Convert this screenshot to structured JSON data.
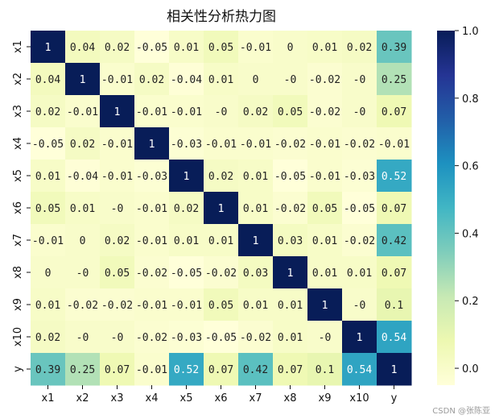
{
  "chart_data": {
    "type": "heatmap",
    "title": "相关性分析热力图",
    "row_labels": [
      "x1",
      "x2",
      "x3",
      "x4",
      "x5",
      "x6",
      "x7",
      "x8",
      "x9",
      "x10",
      "y"
    ],
    "col_labels": [
      "x1",
      "x2",
      "x3",
      "x4",
      "x5",
      "x6",
      "x7",
      "x8",
      "x9",
      "x10",
      "y"
    ],
    "values": [
      [
        1,
        0.04,
        0.02,
        -0.05,
        0.01,
        0.05,
        -0.01,
        0,
        0.01,
        0.02,
        0.39
      ],
      [
        0.04,
        1,
        -0.01,
        0.02,
        -0.04,
        0.01,
        0,
        0,
        -0.02,
        0,
        0.25
      ],
      [
        0.02,
        -0.01,
        1,
        -0.01,
        -0.01,
        0,
        0.02,
        0.05,
        -0.02,
        0,
        0.07
      ],
      [
        -0.05,
        0.02,
        -0.01,
        1,
        -0.03,
        -0.01,
        -0.01,
        -0.02,
        -0.01,
        -0.02,
        -0.01
      ],
      [
        0.01,
        -0.04,
        -0.01,
        -0.03,
        1,
        0.02,
        0.01,
        -0.05,
        -0.01,
        -0.03,
        0.52
      ],
      [
        0.05,
        0.01,
        0,
        -0.01,
        0.02,
        1,
        0.01,
        -0.02,
        0.05,
        -0.05,
        0.07
      ],
      [
        -0.01,
        0,
        0.02,
        -0.01,
        0.01,
        0.01,
        1,
        0.03,
        0.01,
        -0.02,
        0.42
      ],
      [
        0,
        0,
        0.05,
        -0.02,
        -0.05,
        -0.02,
        0.03,
        1,
        0.01,
        0.01,
        0.07
      ],
      [
        0.01,
        -0.02,
        -0.02,
        -0.01,
        -0.01,
        0.05,
        0.01,
        0.01,
        1,
        0,
        0.1
      ],
      [
        0.02,
        0,
        0,
        -0.02,
        -0.03,
        -0.05,
        -0.02,
        0.01,
        0,
        1,
        0.54
      ],
      [
        0.39,
        0.25,
        0.07,
        -0.01,
        0.52,
        0.07,
        0.42,
        0.07,
        0.1,
        0.54,
        1
      ]
    ],
    "display_labels": [
      [
        "1",
        "0.04",
        "0.02",
        "-0.05",
        "0.01",
        "0.05",
        "-0.01",
        "0",
        "0.01",
        "0.02",
        "0.39"
      ],
      [
        "0.04",
        "1",
        "-0.01",
        "0.02",
        "-0.04",
        "0.01",
        "0",
        "-0",
        "-0.02",
        "-0",
        "0.25"
      ],
      [
        "0.02",
        "-0.01",
        "1",
        "-0.01",
        "-0.01",
        "-0",
        "0.02",
        "0.05",
        "-0.02",
        "-0",
        "0.07"
      ],
      [
        "-0.05",
        "0.02",
        "-0.01",
        "1",
        "-0.03",
        "-0.01",
        "-0.01",
        "-0.02",
        "-0.01",
        "-0.02",
        "-0.01"
      ],
      [
        "0.01",
        "-0.04",
        "-0.01",
        "-0.03",
        "1",
        "0.02",
        "0.01",
        "-0.05",
        "-0.01",
        "-0.03",
        "0.52"
      ],
      [
        "0.05",
        "0.01",
        "-0",
        "-0.01",
        "0.02",
        "1",
        "0.01",
        "-0.02",
        "0.05",
        "-0.05",
        "0.07"
      ],
      [
        "-0.01",
        "0",
        "0.02",
        "-0.01",
        "0.01",
        "0.01",
        "1",
        "0.03",
        "0.01",
        "-0.02",
        "0.42"
      ],
      [
        "0",
        "-0",
        "0.05",
        "-0.02",
        "-0.05",
        "-0.02",
        "0.03",
        "1",
        "0.01",
        "0.01",
        "0.07"
      ],
      [
        "0.01",
        "-0.02",
        "-0.02",
        "-0.01",
        "-0.01",
        "0.05",
        "0.01",
        "0.01",
        "1",
        "-0",
        "0.1"
      ],
      [
        "0.02",
        "-0",
        "-0",
        "-0.02",
        "-0.03",
        "-0.05",
        "-0.02",
        "0.01",
        "-0",
        "1",
        "0.54"
      ],
      [
        "0.39",
        "0.25",
        "0.07",
        "-0.01",
        "0.52",
        "0.07",
        "0.42",
        "0.07",
        "0.1",
        "0.54",
        "1"
      ]
    ],
    "colormap": "YlGnBu",
    "colormap_stops": [
      "#ffffd9",
      "#edf8b1",
      "#c7e9b4",
      "#7fcdbb",
      "#41b6c4",
      "#1d91c0",
      "#225ea8",
      "#253494",
      "#081d58"
    ],
    "vmin": -0.05,
    "vmax": 1.0,
    "colorbar_ticks": [
      "0.0",
      "0.2",
      "0.4",
      "0.6",
      "0.8",
      "1.0"
    ],
    "colorbar_tick_values": [
      0,
      0.2,
      0.4,
      0.6,
      0.8,
      1.0
    ],
    "grid": false,
    "legend": "colorbar-right"
  },
  "watermark": "CSDN @张陈亚"
}
